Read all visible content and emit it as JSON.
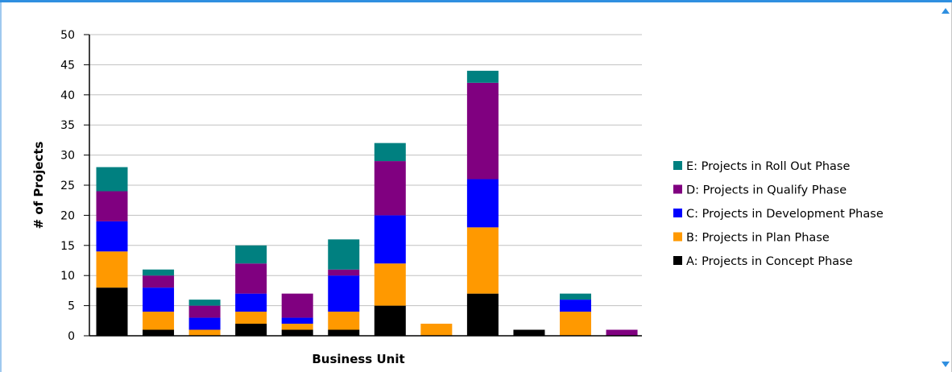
{
  "chart_data": {
    "type": "bar",
    "stacked": true,
    "title": "",
    "xlabel": "Business Unit",
    "ylabel": "# of Projects",
    "ylim": [
      0,
      50
    ],
    "yticks": [
      0,
      5,
      10,
      15,
      20,
      25,
      30,
      35,
      40,
      45,
      50
    ],
    "grid": true,
    "legend_position": "right",
    "categories": [
      "",
      "",
      "",
      "",
      "",
      "",
      "",
      "",
      "",
      "",
      "",
      ""
    ],
    "series": [
      {
        "name": "A: Projects in Concept Phase",
        "color": "#000000",
        "values": [
          8,
          1,
          0,
          2,
          1,
          1,
          5,
          0,
          7,
          1,
          0,
          0
        ]
      },
      {
        "name": "B: Projects in Plan Phase",
        "color": "#ff9900",
        "values": [
          6,
          3,
          1,
          2,
          1,
          3,
          7,
          2,
          11,
          0,
          4,
          0
        ]
      },
      {
        "name": "C: Projects in Development Phase",
        "color": "#0000ff",
        "values": [
          5,
          4,
          2,
          3,
          1,
          6,
          8,
          0,
          8,
          0,
          2,
          0
        ]
      },
      {
        "name": "D: Projects in Qualify Phase",
        "color": "#800080",
        "values": [
          5,
          2,
          2,
          5,
          4,
          1,
          9,
          0,
          16,
          0,
          0,
          1
        ]
      },
      {
        "name": "E: Projects in Roll Out Phase",
        "color": "#008080",
        "values": [
          4,
          1,
          1,
          3,
          0,
          5,
          3,
          0,
          2,
          0,
          1,
          0
        ]
      }
    ]
  }
}
